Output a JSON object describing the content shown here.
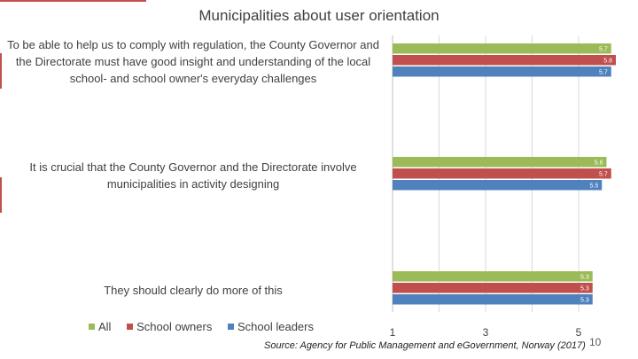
{
  "slide": {
    "source": "Source: Agency for Public Management and eGovernment, Norway (2017)",
    "page_number": "10"
  },
  "chart_data": {
    "type": "bar",
    "orientation": "horizontal",
    "title": "Municipalities about user orientation",
    "categories": [
      "To be able to help us to comply with regulation, the County Governor and the Directorate must have good insight and understanding of the local school- and school owner's everyday challenges",
      "It is crucial that the County Governor and the Directorate involve municipalities in activity designing",
      "They should clearly do more of this"
    ],
    "series": [
      {
        "name": "All",
        "color": "#9bbb59",
        "values": [
          5.7,
          5.6,
          5.3
        ],
        "labels": [
          "5.7",
          "5.6",
          "5.3"
        ]
      },
      {
        "name": "School owners",
        "color": "#c0504d",
        "values": [
          5.8,
          5.7,
          5.3
        ],
        "labels": [
          "5.8",
          "5.7",
          "5.3"
        ]
      },
      {
        "name": "School leaders",
        "color": "#4f81bd",
        "values": [
          5.7,
          5.5,
          5.3
        ],
        "labels": [
          "5.7",
          "5.5",
          "5.3"
        ]
      }
    ],
    "xlim": [
      1,
      5.8
    ],
    "xticks": [
      "1",
      "3",
      "5"
    ],
    "gridlines": true,
    "legend_position": "bottom-left"
  }
}
